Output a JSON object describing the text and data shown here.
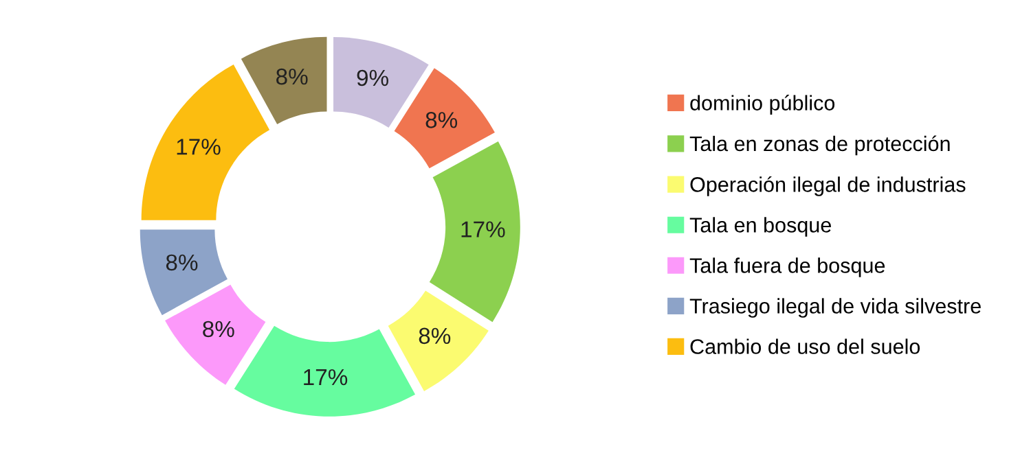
{
  "chart_data": {
    "type": "donut",
    "categories": [
      null,
      "dominio público",
      "Tala en zonas de protección",
      "Operación ilegal de industrias",
      "Tala en bosque",
      "Tala fuera de bosque",
      "Trasiego ilegal de vida silvestre",
      "Cambio de uso del suelo",
      null
    ],
    "values": [
      9,
      8,
      17,
      8,
      17,
      8,
      8,
      17,
      8
    ],
    "value_labels": [
      "9%",
      "8%",
      "17%",
      "8%",
      "17%",
      "8%",
      "8%",
      "17%",
      "8%"
    ],
    "colors": [
      "#c9bfdc",
      "#f07550",
      "#8cd04f",
      "#fbfb70",
      "#66fc9f",
      "#fc99fa",
      "#8da3c8",
      "#fcbd10",
      "#948553"
    ],
    "legend": "right"
  }
}
